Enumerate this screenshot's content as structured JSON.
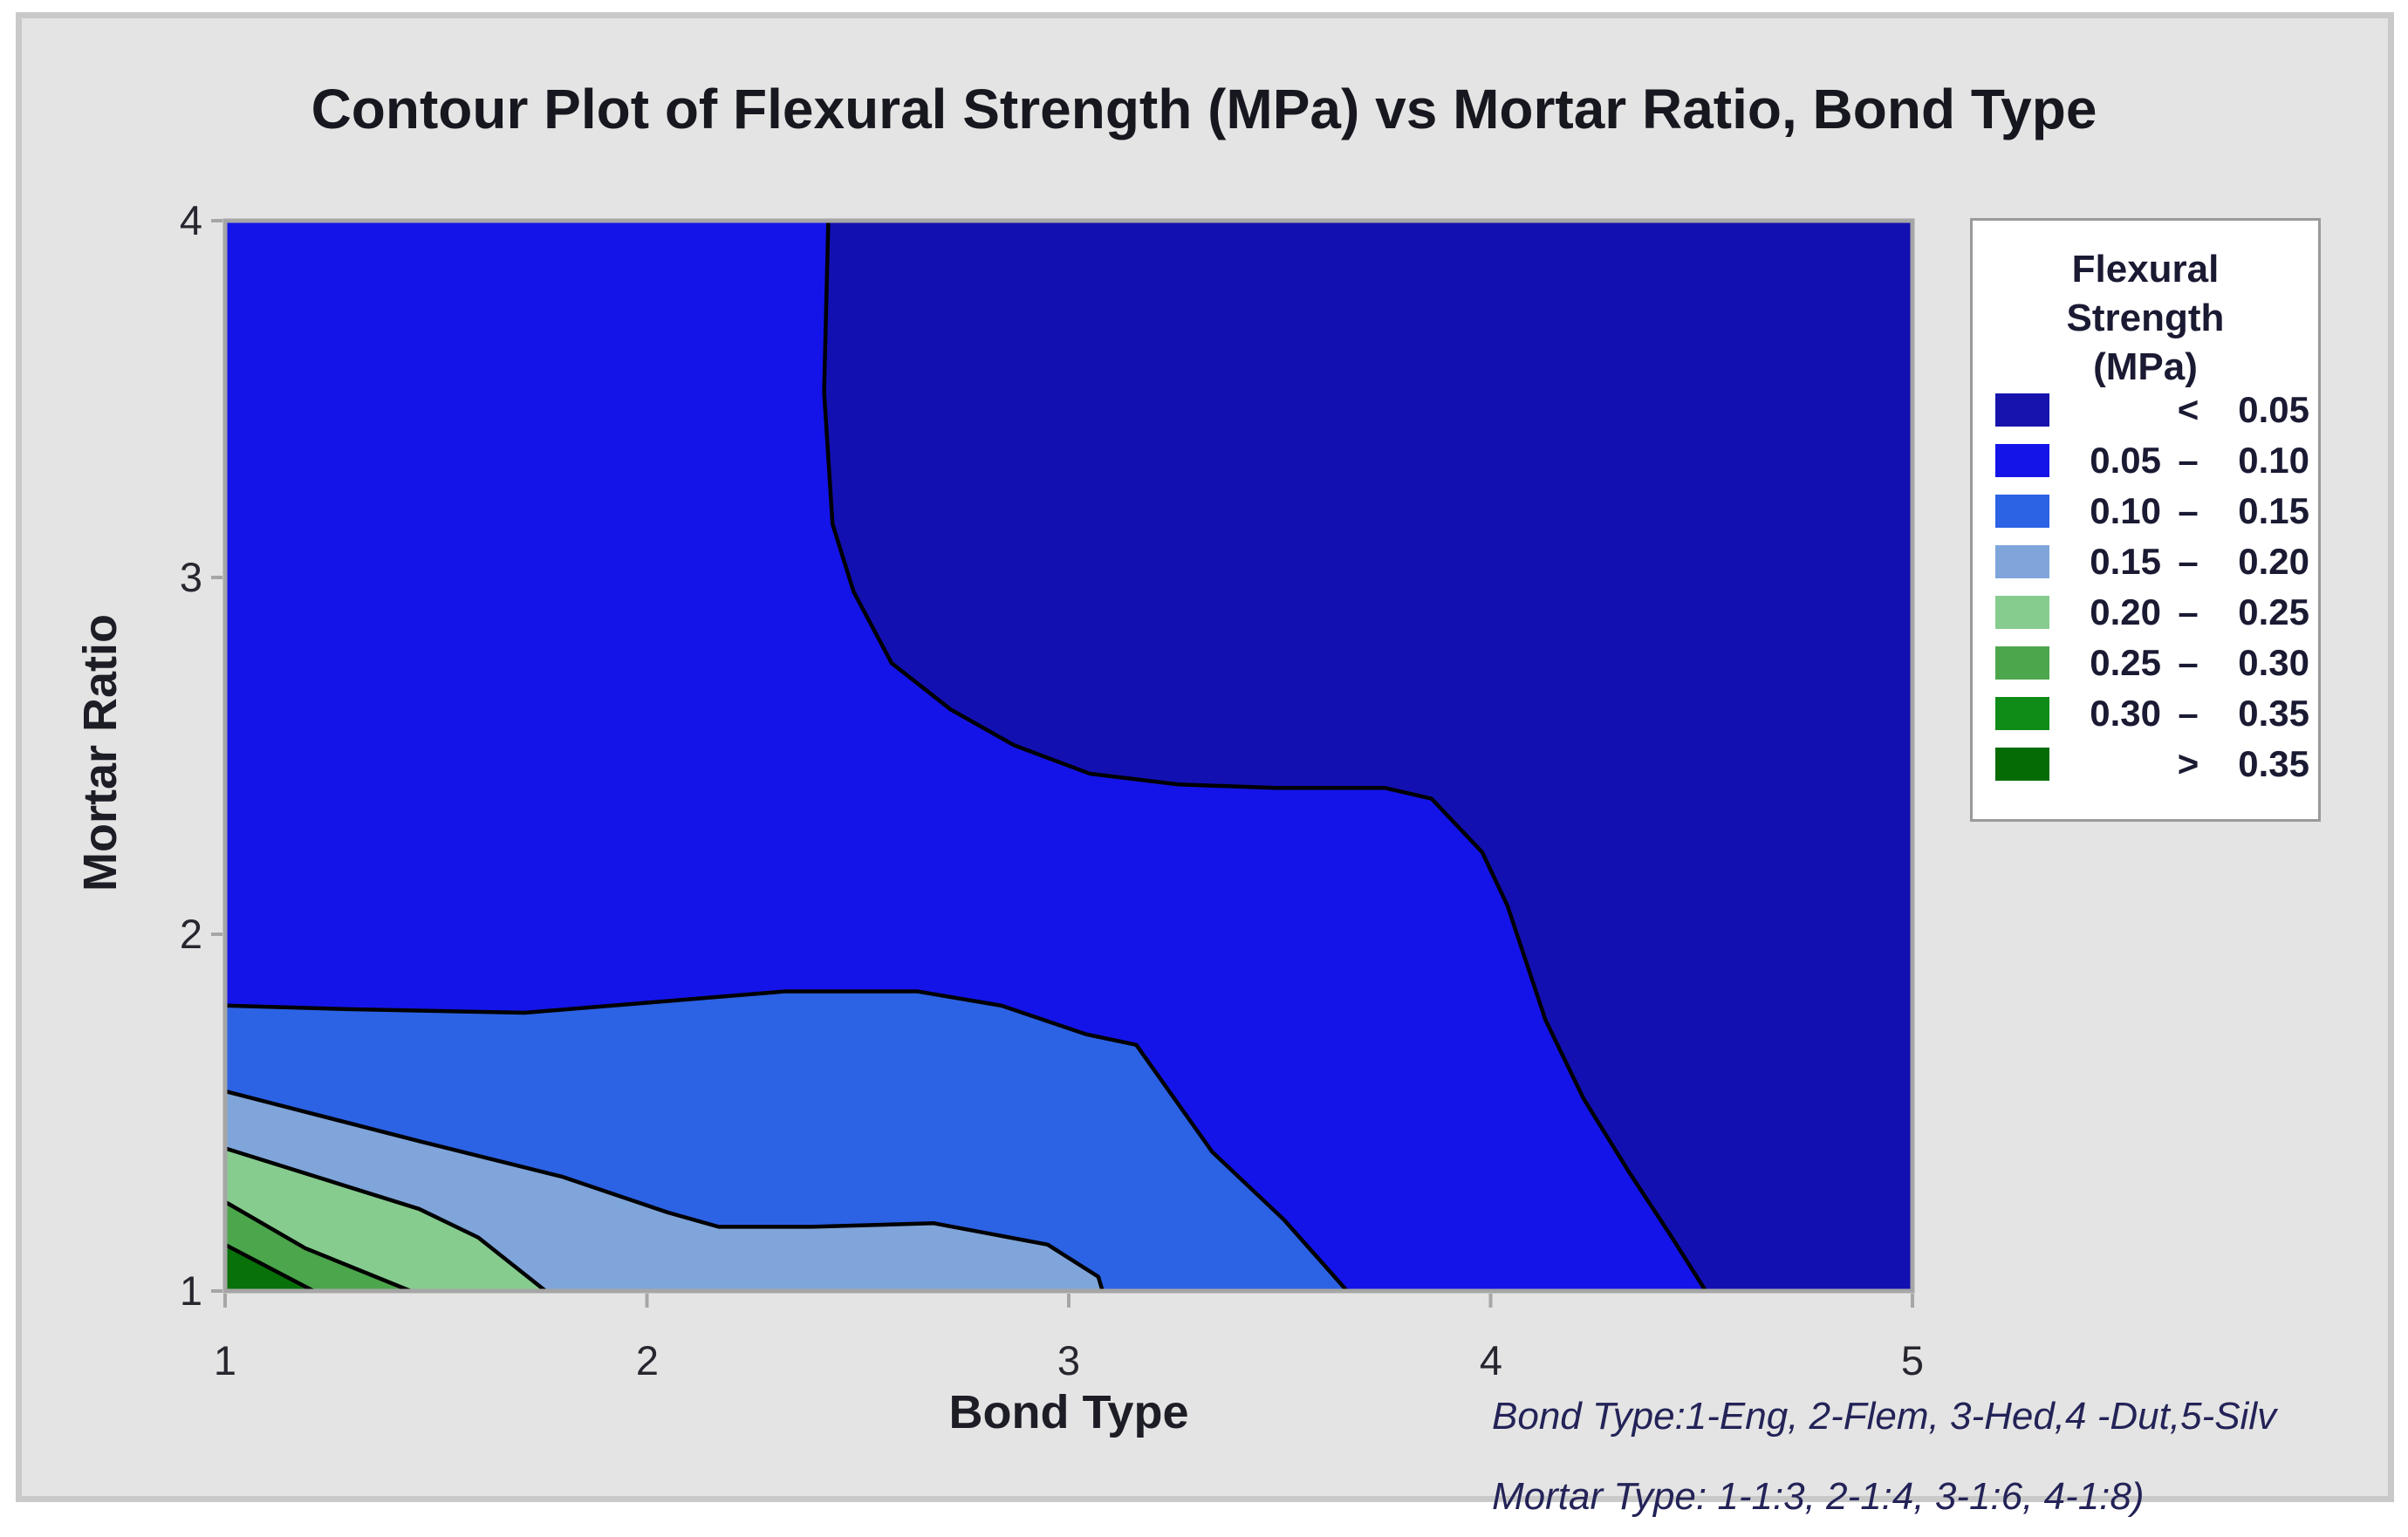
{
  "figure": {
    "title": "Contour Plot of Flexural Strength (MPa) vs Mortar Ratio, Bond Type"
  },
  "footnotes": {
    "line1": "Bond Type:1-Eng, 2-Flem, 3-Hed,4 -Dut,5-Silv",
    "line2": "Mortar Type: 1-1:3, 2-1:4, 3-1:6, 4-1:8)"
  },
  "legend": {
    "title_lines": [
      "Flexural",
      "Strength",
      "(MPa)"
    ],
    "rows": [
      {
        "left": "",
        "sep": "<",
        "right": "0.05",
        "color": "#1714ad"
      },
      {
        "left": "0.05",
        "sep": "–",
        "right": "0.10",
        "color": "#1414e8"
      },
      {
        "left": "0.10",
        "sep": "–",
        "right": "0.15",
        "color": "#2c62e4"
      },
      {
        "left": "0.15",
        "sep": "–",
        "right": "0.20",
        "color": "#7fa5da"
      },
      {
        "left": "0.20",
        "sep": "–",
        "right": "0.25",
        "color": "#87cc8f"
      },
      {
        "left": "0.25",
        "sep": "–",
        "right": "0.30",
        "color": "#4ca64c"
      },
      {
        "left": "0.30",
        "sep": "–",
        "right": "0.35",
        "color": "#0f8c17"
      },
      {
        "left": "",
        "sep": ">",
        "right": "0.35",
        "color": "#046b05"
      }
    ]
  },
  "chart_data": {
    "type": "heatmap",
    "subtype": "filled-contour",
    "title": "Contour Plot of Flexural Strength (MPa) vs Mortar Ratio, Bond Type",
    "xlabel": "Bond Type",
    "ylabel": "Mortar Ratio",
    "zlabel": "Flexural Strength (MPa)",
    "grid": false,
    "legend_position": "right",
    "x": {
      "range": [
        1,
        5
      ],
      "ticks": [
        1,
        2,
        3,
        4,
        5
      ],
      "tick_labels": [
        "1",
        "2",
        "3",
        "4",
        "5"
      ]
    },
    "y": {
      "range": [
        1,
        4
      ],
      "ticks": [
        4,
        3,
        2,
        1
      ],
      "tick_labels": [
        "4",
        "3",
        "2",
        "1"
      ]
    },
    "levels": [
      0.05,
      0.1,
      0.15,
      0.2,
      0.25,
      0.3,
      0.35
    ],
    "background_fill": "#1310b2",
    "frame_color": "#a6a6a6",
    "line_color": "#000000",
    "contours": [
      {
        "level": 0.05,
        "fill_below": "#1414e8",
        "points": [
          [
            2.43,
            4.0
          ],
          [
            2.42,
            3.52
          ],
          [
            2.44,
            3.15
          ],
          [
            2.49,
            2.96
          ],
          [
            2.58,
            2.76
          ],
          [
            2.72,
            2.63
          ],
          [
            2.87,
            2.53
          ],
          [
            3.05,
            2.45
          ],
          [
            3.26,
            2.42
          ],
          [
            3.49,
            2.41
          ],
          [
            3.75,
            2.41
          ],
          [
            3.86,
            2.38
          ],
          [
            3.98,
            2.23
          ],
          [
            4.04,
            2.08
          ],
          [
            4.13,
            1.76
          ],
          [
            4.22,
            1.54
          ],
          [
            4.33,
            1.33
          ],
          [
            4.43,
            1.15
          ],
          [
            4.51,
            1.0
          ]
        ]
      },
      {
        "level": 0.1,
        "fill_below": "#2c62e4",
        "points": [
          [
            1.0,
            1.8
          ],
          [
            1.29,
            1.79
          ],
          [
            1.71,
            1.78
          ],
          [
            2.02,
            1.81
          ],
          [
            2.33,
            1.84
          ],
          [
            2.64,
            1.84
          ],
          [
            2.84,
            1.8
          ],
          [
            3.04,
            1.72
          ],
          [
            3.16,
            1.69
          ],
          [
            3.34,
            1.39
          ],
          [
            3.51,
            1.2
          ],
          [
            3.66,
            1.0
          ]
        ]
      },
      {
        "level": 0.15,
        "fill_below": "#7fa5da",
        "points": [
          [
            1.0,
            1.56
          ],
          [
            1.46,
            1.42
          ],
          [
            1.8,
            1.32
          ],
          [
            2.05,
            1.22
          ],
          [
            2.17,
            1.18
          ],
          [
            2.39,
            1.18
          ],
          [
            2.68,
            1.19
          ],
          [
            2.95,
            1.13
          ],
          [
            3.07,
            1.04
          ],
          [
            3.08,
            1.0
          ]
        ]
      },
      {
        "level": 0.2,
        "fill_below": "#87cc8f",
        "points": [
          [
            1.0,
            1.4
          ],
          [
            1.46,
            1.23
          ],
          [
            1.6,
            1.15
          ],
          [
            1.76,
            1.0
          ]
        ]
      },
      {
        "level": 0.25,
        "fill_below": "#4ca64c",
        "points": [
          [
            1.0,
            1.25
          ],
          [
            1.19,
            1.12
          ],
          [
            1.44,
            1.0
          ]
        ]
      },
      {
        "level": 0.3,
        "fill_below": "#087109",
        "points": [
          [
            1.0,
            1.13
          ],
          [
            1.21,
            1.0
          ]
        ]
      }
    ]
  }
}
